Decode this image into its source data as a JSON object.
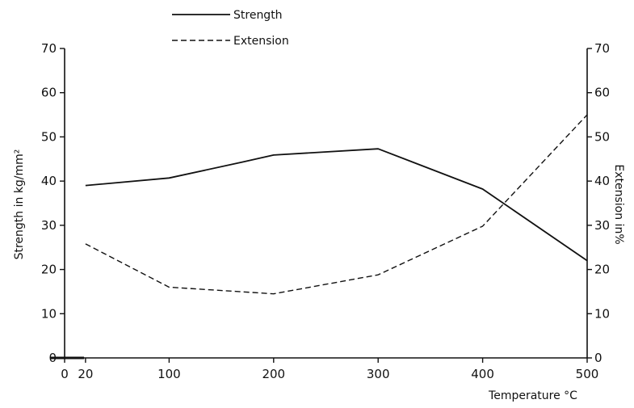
{
  "chart_data": {
    "type": "line",
    "xlabel": "Temperature °C",
    "ylabel_left": "Strength in kg/mm²",
    "ylabel_right": "Extension in%",
    "xlim": [
      0,
      500
    ],
    "ylim_left": [
      0,
      70
    ],
    "ylim_right": [
      0,
      70
    ],
    "x_ticks": [
      "0",
      "20",
      "100",
      "200",
      "300",
      "400",
      "500"
    ],
    "x_tick_values": [
      0,
      20,
      100,
      200,
      300,
      400,
      500
    ],
    "y_ticks_left": [
      "0",
      "10",
      "20",
      "30",
      "40",
      "50",
      "60",
      "70"
    ],
    "y_ticks_right": [
      "0",
      "10",
      "20",
      "30",
      "40",
      "50",
      "60",
      "70"
    ],
    "y_tick_values": [
      0,
      10,
      20,
      30,
      40,
      50,
      60,
      70
    ],
    "grid": false,
    "legend_position": "top-center",
    "series": [
      {
        "name": "Strength",
        "axis": "left",
        "style": "solid",
        "x": [
          20,
          100,
          170,
          200,
          300,
          400,
          500
        ],
        "y": [
          39,
          40.7,
          44.3,
          45.9,
          47.3,
          38.2,
          22
        ]
      },
      {
        "name": "Extension",
        "axis": "right",
        "style": "dashed",
        "x": [
          20,
          100,
          200,
          300,
          400,
          500
        ],
        "y": [
          25.8,
          16,
          14.5,
          18.8,
          29.8,
          55
        ]
      }
    ]
  }
}
